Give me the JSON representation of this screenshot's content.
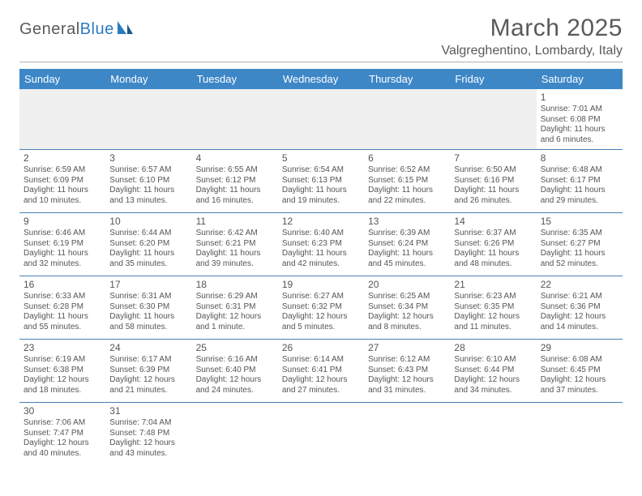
{
  "logo": {
    "text1": "General",
    "text2": "Blue"
  },
  "title": "March 2025",
  "location": "Valgreghentino, Lombardy, Italy",
  "colors": {
    "header_bg": "#3d87c7",
    "header_text": "#ffffff",
    "border": "#4a7fb5",
    "text": "#555555",
    "logo_blue": "#2b7bbf"
  },
  "dayHeaders": [
    "Sunday",
    "Monday",
    "Tuesday",
    "Wednesday",
    "Thursday",
    "Friday",
    "Saturday"
  ],
  "weeks": [
    [
      null,
      null,
      null,
      null,
      null,
      null,
      {
        "n": "1",
        "sr": "7:01 AM",
        "ss": "6:08 PM",
        "dl": "11 hours and 6 minutes."
      }
    ],
    [
      {
        "n": "2",
        "sr": "6:59 AM",
        "ss": "6:09 PM",
        "dl": "11 hours and 10 minutes."
      },
      {
        "n": "3",
        "sr": "6:57 AM",
        "ss": "6:10 PM",
        "dl": "11 hours and 13 minutes."
      },
      {
        "n": "4",
        "sr": "6:55 AM",
        "ss": "6:12 PM",
        "dl": "11 hours and 16 minutes."
      },
      {
        "n": "5",
        "sr": "6:54 AM",
        "ss": "6:13 PM",
        "dl": "11 hours and 19 minutes."
      },
      {
        "n": "6",
        "sr": "6:52 AM",
        "ss": "6:15 PM",
        "dl": "11 hours and 22 minutes."
      },
      {
        "n": "7",
        "sr": "6:50 AM",
        "ss": "6:16 PM",
        "dl": "11 hours and 26 minutes."
      },
      {
        "n": "8",
        "sr": "6:48 AM",
        "ss": "6:17 PM",
        "dl": "11 hours and 29 minutes."
      }
    ],
    [
      {
        "n": "9",
        "sr": "6:46 AM",
        "ss": "6:19 PM",
        "dl": "11 hours and 32 minutes."
      },
      {
        "n": "10",
        "sr": "6:44 AM",
        "ss": "6:20 PM",
        "dl": "11 hours and 35 minutes."
      },
      {
        "n": "11",
        "sr": "6:42 AM",
        "ss": "6:21 PM",
        "dl": "11 hours and 39 minutes."
      },
      {
        "n": "12",
        "sr": "6:40 AM",
        "ss": "6:23 PM",
        "dl": "11 hours and 42 minutes."
      },
      {
        "n": "13",
        "sr": "6:39 AM",
        "ss": "6:24 PM",
        "dl": "11 hours and 45 minutes."
      },
      {
        "n": "14",
        "sr": "6:37 AM",
        "ss": "6:26 PM",
        "dl": "11 hours and 48 minutes."
      },
      {
        "n": "15",
        "sr": "6:35 AM",
        "ss": "6:27 PM",
        "dl": "11 hours and 52 minutes."
      }
    ],
    [
      {
        "n": "16",
        "sr": "6:33 AM",
        "ss": "6:28 PM",
        "dl": "11 hours and 55 minutes."
      },
      {
        "n": "17",
        "sr": "6:31 AM",
        "ss": "6:30 PM",
        "dl": "11 hours and 58 minutes."
      },
      {
        "n": "18",
        "sr": "6:29 AM",
        "ss": "6:31 PM",
        "dl": "12 hours and 1 minute."
      },
      {
        "n": "19",
        "sr": "6:27 AM",
        "ss": "6:32 PM",
        "dl": "12 hours and 5 minutes."
      },
      {
        "n": "20",
        "sr": "6:25 AM",
        "ss": "6:34 PM",
        "dl": "12 hours and 8 minutes."
      },
      {
        "n": "21",
        "sr": "6:23 AM",
        "ss": "6:35 PM",
        "dl": "12 hours and 11 minutes."
      },
      {
        "n": "22",
        "sr": "6:21 AM",
        "ss": "6:36 PM",
        "dl": "12 hours and 14 minutes."
      }
    ],
    [
      {
        "n": "23",
        "sr": "6:19 AM",
        "ss": "6:38 PM",
        "dl": "12 hours and 18 minutes."
      },
      {
        "n": "24",
        "sr": "6:17 AM",
        "ss": "6:39 PM",
        "dl": "12 hours and 21 minutes."
      },
      {
        "n": "25",
        "sr": "6:16 AM",
        "ss": "6:40 PM",
        "dl": "12 hours and 24 minutes."
      },
      {
        "n": "26",
        "sr": "6:14 AM",
        "ss": "6:41 PM",
        "dl": "12 hours and 27 minutes."
      },
      {
        "n": "27",
        "sr": "6:12 AM",
        "ss": "6:43 PM",
        "dl": "12 hours and 31 minutes."
      },
      {
        "n": "28",
        "sr": "6:10 AM",
        "ss": "6:44 PM",
        "dl": "12 hours and 34 minutes."
      },
      {
        "n": "29",
        "sr": "6:08 AM",
        "ss": "6:45 PM",
        "dl": "12 hours and 37 minutes."
      }
    ],
    [
      {
        "n": "30",
        "sr": "7:06 AM",
        "ss": "7:47 PM",
        "dl": "12 hours and 40 minutes."
      },
      {
        "n": "31",
        "sr": "7:04 AM",
        "ss": "7:48 PM",
        "dl": "12 hours and 43 minutes."
      },
      null,
      null,
      null,
      null,
      null
    ]
  ],
  "labels": {
    "sunrise": "Sunrise:",
    "sunset": "Sunset:",
    "daylight": "Daylight:"
  }
}
